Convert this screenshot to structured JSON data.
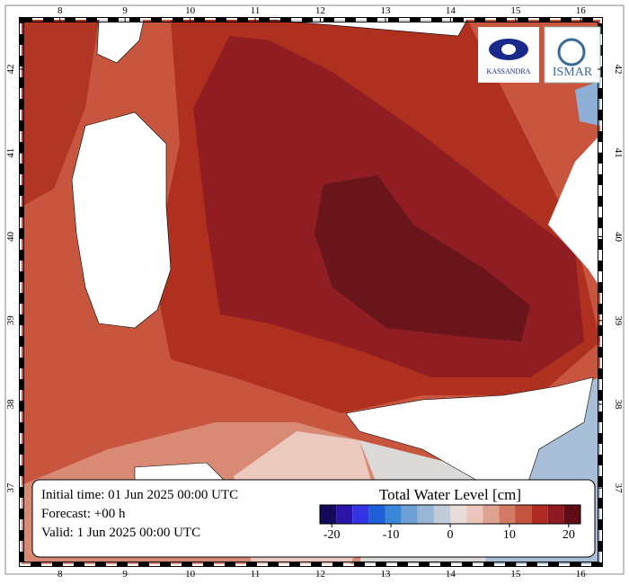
{
  "map": {
    "lon_ticks": [
      8,
      9,
      10,
      11,
      12,
      13,
      14,
      15,
      16
    ],
    "lat_ticks": [
      37,
      38,
      39,
      40,
      41,
      42
    ],
    "xlim": [
      7.41,
      16.3
    ],
    "ylim": [
      36.09,
      42.59
    ],
    "logos": [
      "KASSANDRA",
      "ISMAR"
    ],
    "info": [
      "Initial time: 01 Jun 2025 00:00 UTC",
      "Forecast: +00 h",
      "Valid:  1 Jun 2025 00:00 UTC"
    ],
    "colorbar": {
      "title": "Total Water Level [cm]",
      "clim": [
        -22,
        22
      ],
      "ticks": [
        -20,
        -10,
        0,
        10,
        20
      ],
      "colors": [
        "#140a5a",
        "#2a14a6",
        "#3434e6",
        "#1e5ed6",
        "#3a86d8",
        "#6ea0d6",
        "#97b6d6",
        "#c2ccd8",
        "#e6dcd8",
        "#ecc6bc",
        "#dea290",
        "#d27a66",
        "#c4523c",
        "#ae2a22",
        "#8c1a20",
        "#5e0c16"
      ]
    }
  }
}
